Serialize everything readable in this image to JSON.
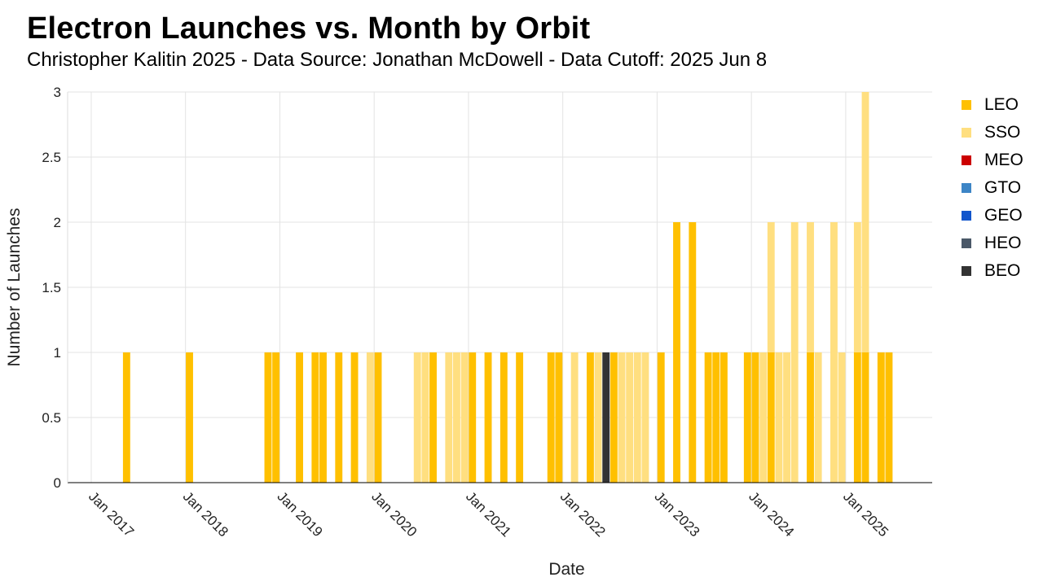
{
  "title": "Electron Launches vs. Month by Orbit",
  "subtitle": "Christopher Kalitin 2025 - Data Source: Jonathan McDowell - Data Cutoff: 2025 Jun 8",
  "chart_data": {
    "type": "bar",
    "stacked": true,
    "xlabel": "Date",
    "ylabel": "Number of Launches",
    "x_range": [
      "2016-10",
      "2025-12"
    ],
    "ylim": [
      0,
      3
    ],
    "yticks": [
      0,
      0.5,
      1,
      1.5,
      2,
      2.5,
      3
    ],
    "xticks": [
      "Jan 2017",
      "Jan 2018",
      "Jan 2019",
      "Jan 2020",
      "Jan 2021",
      "Jan 2022",
      "Jan 2023",
      "Jan 2024",
      "Jan 2025"
    ],
    "grid": true,
    "legend_position": "right",
    "series": [
      {
        "name": "LEO",
        "color": "#FFC000"
      },
      {
        "name": "SSO",
        "color": "#FFDF80"
      },
      {
        "name": "MEO",
        "color": "#CC0000"
      },
      {
        "name": "GTO",
        "color": "#3D85C6"
      },
      {
        "name": "GEO",
        "color": "#1155CC"
      },
      {
        "name": "HEO",
        "color": "#4A5868"
      },
      {
        "name": "BEO",
        "color": "#333333"
      }
    ],
    "data": [
      {
        "month": "2017-05",
        "LEO": 1
      },
      {
        "month": "2018-01",
        "LEO": 1
      },
      {
        "month": "2018-11",
        "LEO": 1
      },
      {
        "month": "2018-12",
        "LEO": 1
      },
      {
        "month": "2019-03",
        "LEO": 1
      },
      {
        "month": "2019-05",
        "LEO": 1
      },
      {
        "month": "2019-06",
        "LEO": 1
      },
      {
        "month": "2019-08",
        "LEO": 1
      },
      {
        "month": "2019-10",
        "LEO": 1
      },
      {
        "month": "2019-12",
        "SSO": 1
      },
      {
        "month": "2020-01",
        "LEO": 1
      },
      {
        "month": "2020-06",
        "SSO": 1
      },
      {
        "month": "2020-07",
        "SSO": 1
      },
      {
        "month": "2020-08",
        "LEO": 1
      },
      {
        "month": "2020-10",
        "SSO": 1
      },
      {
        "month": "2020-11",
        "SSO": 1
      },
      {
        "month": "2020-12",
        "SSO": 1
      },
      {
        "month": "2021-01",
        "LEO": 1
      },
      {
        "month": "2021-03",
        "LEO": 1
      },
      {
        "month": "2021-05",
        "LEO": 1
      },
      {
        "month": "2021-07",
        "LEO": 1
      },
      {
        "month": "2021-11",
        "LEO": 1
      },
      {
        "month": "2021-12",
        "LEO": 1
      },
      {
        "month": "2022-02",
        "SSO": 1
      },
      {
        "month": "2022-04",
        "LEO": 1
      },
      {
        "month": "2022-05",
        "SSO": 1
      },
      {
        "month": "2022-06",
        "BEO": 1
      },
      {
        "month": "2022-07",
        "LEO": 1
      },
      {
        "month": "2022-08",
        "SSO": 1
      },
      {
        "month": "2022-09",
        "SSO": 1
      },
      {
        "month": "2022-10",
        "SSO": 1
      },
      {
        "month": "2022-11",
        "SSO": 1
      },
      {
        "month": "2023-01",
        "LEO": 1
      },
      {
        "month": "2023-03",
        "LEO": 2
      },
      {
        "month": "2023-05",
        "LEO": 2
      },
      {
        "month": "2023-07",
        "LEO": 1
      },
      {
        "month": "2023-08",
        "LEO": 1
      },
      {
        "month": "2023-09",
        "LEO": 1
      },
      {
        "month": "2023-12",
        "LEO": 1
      },
      {
        "month": "2024-01",
        "LEO": 1
      },
      {
        "month": "2024-02",
        "SSO": 1
      },
      {
        "month": "2024-03",
        "LEO": 1,
        "SSO": 1
      },
      {
        "month": "2024-04",
        "SSO": 1
      },
      {
        "month": "2024-05",
        "SSO": 1
      },
      {
        "month": "2024-06",
        "SSO": 2
      },
      {
        "month": "2024-08",
        "LEO": 1,
        "SSO": 1
      },
      {
        "month": "2024-09",
        "SSO": 1
      },
      {
        "month": "2024-11",
        "SSO": 2
      },
      {
        "month": "2024-12",
        "SSO": 1
      },
      {
        "month": "2025-02",
        "LEO": 1,
        "SSO": 1
      },
      {
        "month": "2025-03",
        "LEO": 1,
        "SSO": 2
      },
      {
        "month": "2025-05",
        "LEO": 1
      },
      {
        "month": "2025-06",
        "LEO": 1
      }
    ]
  }
}
